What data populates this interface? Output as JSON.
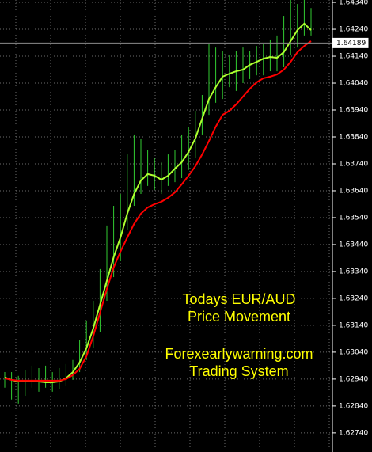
{
  "chart_data": {
    "type": "ohlc",
    "annotations": [
      "Todays EUR/AUD",
      "Price Movement",
      "Forexearlywarning.com",
      "Trading System"
    ],
    "high": [
      1.62966,
      1.62966,
      1.62952,
      1.62972,
      1.6299,
      1.62981,
      1.6299,
      1.62966,
      1.62981,
      1.62996,
      1.63011,
      1.63084,
      1.63158,
      1.63231,
      1.63349,
      1.63511,
      1.63584,
      1.63628,
      1.63775,
      1.63849,
      1.63834,
      1.6379,
      1.63761,
      1.63746,
      1.63775,
      1.6379,
      1.63849,
      1.63878,
      1.63937,
      1.63996,
      1.64187,
      1.64172,
      1.64158,
      1.64143,
      1.64158,
      1.64172,
      1.64158,
      1.64178,
      1.64187,
      1.64202,
      1.64217,
      1.6429,
      1.64349,
      1.64334,
      1.64349,
      1.64319
    ],
    "low": [
      1.62908,
      1.62864,
      1.62849,
      1.62878,
      1.62908,
      1.62893,
      1.62908,
      1.62893,
      1.62902,
      1.62914,
      1.62937,
      1.62966,
      1.63011,
      1.63055,
      1.63114,
      1.63231,
      1.63319,
      1.63378,
      1.63496,
      1.63584,
      1.63628,
      1.63658,
      1.63643,
      1.63628,
      1.63658,
      1.63672,
      1.63687,
      1.63717,
      1.63761,
      1.63849,
      1.63922,
      1.63967,
      1.63981,
      1.64025,
      1.64011,
      1.6404,
      1.64055,
      1.64069,
      1.64069,
      1.64084,
      1.64084,
      1.64099,
      1.64143,
      1.64172,
      1.64217,
      1.64217
    ],
    "bar_color": "#32cd32",
    "series": [
      {
        "color": "#adff2f",
        "values": [
          1.62946,
          1.62937,
          1.62931,
          1.62931,
          1.62934,
          1.62931,
          1.62928,
          1.62928,
          1.62931,
          1.62943,
          1.62966,
          1.63002,
          1.63055,
          1.63128,
          1.63217,
          1.63305,
          1.63393,
          1.63466,
          1.63555,
          1.63628,
          1.63678,
          1.63702,
          1.63696,
          1.63681,
          1.63696,
          1.63722,
          1.63746,
          1.63784,
          1.63834,
          1.63908,
          1.63981,
          1.64025,
          1.64064,
          1.64075,
          1.64084,
          1.6409,
          1.64108,
          1.64119,
          1.64131,
          1.64137,
          1.64134,
          1.64155,
          1.64196,
          1.64237,
          1.64261,
          1.64237
        ]
      },
      {
        "color": "#ff0000",
        "values": [
          1.62943,
          1.62937,
          1.62934,
          1.62934,
          1.62934,
          1.62934,
          1.62934,
          1.62934,
          1.62934,
          1.6294,
          1.62955,
          1.62978,
          1.63025,
          1.63099,
          1.63187,
          1.63275,
          1.63355,
          1.63414,
          1.63466,
          1.63517,
          1.63555,
          1.63578,
          1.6359,
          1.63599,
          1.63614,
          1.63634,
          1.63664,
          1.63696,
          1.63731,
          1.63775,
          1.63825,
          1.63878,
          1.63922,
          1.63937,
          1.63961,
          1.6399,
          1.64019,
          1.64043,
          1.64058,
          1.64064,
          1.64072,
          1.6409,
          1.64119,
          1.64155,
          1.64178,
          1.64196
        ]
      }
    ],
    "current_price": 1.64189,
    "ylim": [
      1.62669,
      1.64349
    ],
    "yticks": [
      {
        "value": 1.6434,
        "label": "1.64340"
      },
      {
        "value": 1.6424,
        "label": "1.64240"
      },
      {
        "value": 1.6414,
        "label": "1.64140"
      },
      {
        "value": 1.6404,
        "label": "1.64040"
      },
      {
        "value": 1.6394,
        "label": "1.63940"
      },
      {
        "value": 1.6384,
        "label": "1.63840"
      },
      {
        "value": 1.6374,
        "label": "1.63740"
      },
      {
        "value": 1.6364,
        "label": "1.63640"
      },
      {
        "value": 1.6354,
        "label": "1.63540"
      },
      {
        "value": 1.6344,
        "label": "1.63440"
      },
      {
        "value": 1.6334,
        "label": "1.63340"
      },
      {
        "value": 1.6324,
        "label": "1.63240"
      },
      {
        "value": 1.6314,
        "label": "1.63140"
      },
      {
        "value": 1.6304,
        "label": "1.63040"
      },
      {
        "value": 1.6294,
        "label": "1.62940"
      },
      {
        "value": 1.6284,
        "label": "1.62840"
      },
      {
        "value": 1.6274,
        "label": "1.62740"
      }
    ],
    "grid": true
  }
}
